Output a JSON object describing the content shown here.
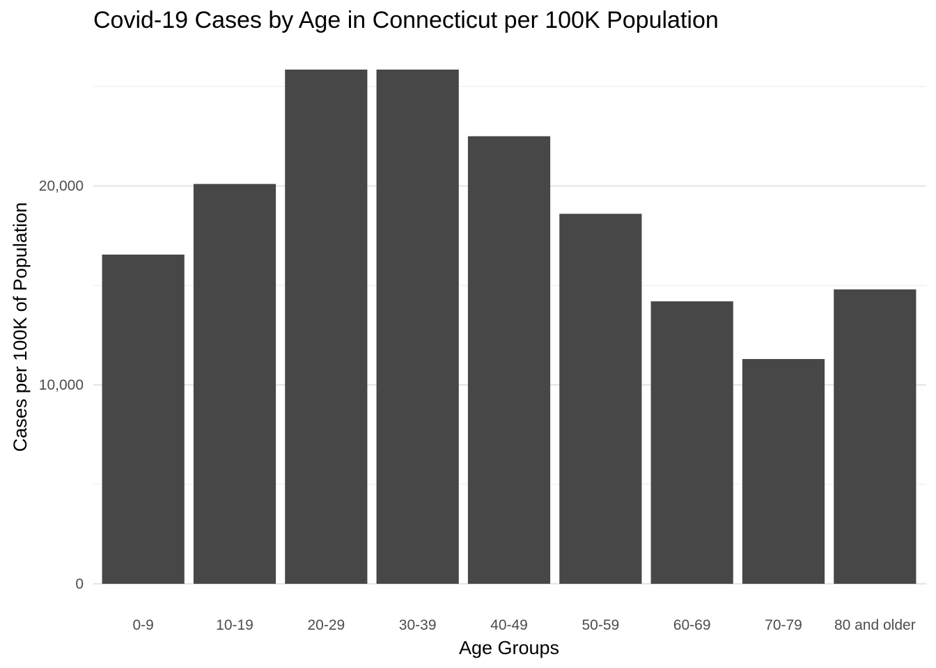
{
  "chart_data": {
    "type": "bar",
    "title": "Covid-19 Cases by Age in Connecticut per 100K Population",
    "xlabel": "Age Groups",
    "ylabel": "Cases per 100K of Population",
    "categories": [
      "0-9",
      "10-19",
      "20-29",
      "30-39",
      "40-49",
      "50-59",
      "60-69",
      "70-79",
      "80 and older"
    ],
    "values": [
      16550,
      20100,
      25850,
      25850,
      22500,
      18600,
      14200,
      11300,
      14800
    ],
    "ylim": [
      0,
      27000
    ],
    "yticks": [
      0,
      10000,
      20000
    ],
    "ytick_labels": [
      "0",
      "10,000",
      "20,000"
    ],
    "minor_yticks": [
      5000,
      15000,
      25000
    ],
    "grid": true,
    "bar_color": "#474747",
    "grid_color": "#e6e6e6"
  }
}
